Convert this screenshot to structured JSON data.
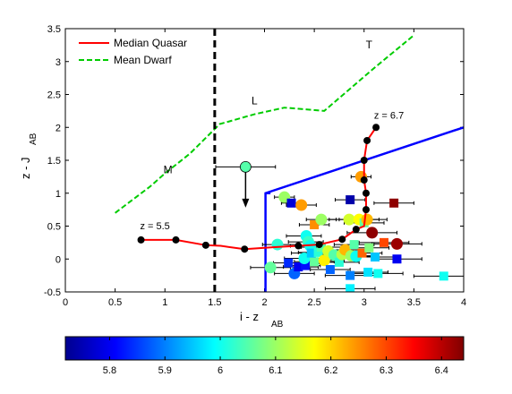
{
  "chart_data": {
    "type": "scatter",
    "xlabel": "i - z",
    "xlabel_sub": "AB",
    "ylabel": "z - J",
    "ylabel_sub": "AB",
    "xlim": [
      0,
      4
    ],
    "ylim": [
      -0.5,
      3.5
    ],
    "xticks": [
      0,
      0.5,
      1,
      1.5,
      2,
      2.5,
      3,
      3.5,
      4
    ],
    "xtick_labels": [
      "0",
      "0.5",
      "1",
      "1.5",
      "2",
      "2.5",
      "3",
      "3.5",
      "4"
    ],
    "yticks": [
      -0.5,
      0,
      0.5,
      1,
      1.5,
      2,
      2.5,
      3,
      3.5
    ],
    "ytick_labels": [
      "-0.5",
      "0",
      "0.5",
      "1",
      "1.5",
      "2",
      "2.5",
      "3",
      "3.5"
    ],
    "legend": {
      "placement": "top-left",
      "entries": [
        {
          "label": "Median Quasar",
          "color": "#ff0000",
          "style": "solid"
        },
        {
          "label": "Mean Dwarf",
          "color": "#00cc00",
          "style": "dashed"
        }
      ]
    },
    "quasar_track": {
      "x": [
        0.76,
        1.11,
        1.41,
        1.56,
        1.8,
        2.1,
        2.34,
        2.55,
        2.78,
        2.92,
        3.0,
        3.02,
        3.02,
        3.0,
        3.0,
        3.03,
        3.12
      ],
      "y": [
        0.29,
        0.29,
        0.21,
        0.2,
        0.15,
        0.18,
        0.2,
        0.22,
        0.3,
        0.45,
        0.5,
        0.75,
        1.0,
        1.2,
        1.5,
        1.8,
        2.0
      ]
    },
    "quasar_markers": {
      "x": [
        0.76,
        1.11,
        1.41,
        1.8,
        2.34,
        2.55,
        2.78,
        2.92,
        3.02,
        3.02,
        3.0,
        3.0,
        3.03,
        3.12
      ],
      "y": [
        0.29,
        0.29,
        0.21,
        0.15,
        0.2,
        0.22,
        0.3,
        0.45,
        0.75,
        1.0,
        1.2,
        1.5,
        1.8,
        2.0
      ]
    },
    "dwarf_track": {
      "x": [
        0.5,
        0.85,
        1.0,
        1.25,
        1.55,
        1.9,
        2.2,
        2.6,
        3.1,
        3.5
      ],
      "y": [
        0.7,
        1.1,
        1.3,
        1.6,
        2.05,
        2.2,
        2.3,
        2.25,
        2.9,
        3.4
      ]
    },
    "dwarf_labels": [
      {
        "text": "M",
        "x": 1.03,
        "y": 1.3
      },
      {
        "text": "L",
        "x": 1.9,
        "y": 2.35
      },
      {
        "text": "T",
        "x": 3.05,
        "y": 3.2
      }
    ],
    "track_annotations": [
      {
        "text": "z = 5.5",
        "x": 0.75,
        "y": 0.45
      },
      {
        "text": "z = 6.7",
        "x": 3.1,
        "y": 2.13
      }
    ],
    "cut_line": {
      "x": 1.5,
      "style": "dashed",
      "color": "#000000"
    },
    "selection_box": {
      "x": [
        2.01,
        2.01,
        4.0
      ],
      "y": [
        -0.5,
        1.0,
        2.0
      ],
      "tail_x": [
        2.01,
        2.06
      ],
      "tail_y": [
        1.0,
        1.0
      ],
      "color": "#0000ff"
    },
    "upper_limit": {
      "x": 1.81,
      "y": 1.4,
      "z": 6.05,
      "xerr": [
        0.3,
        0.3
      ],
      "arrow_to": 0.78
    },
    "points": [
      {
        "x": 2.06,
        "y": -0.13,
        "z": 6.06,
        "m": "c",
        "e": [
          0.2,
          0.2
        ]
      },
      {
        "x": 2.13,
        "y": 0.22,
        "z": 6.02,
        "m": "c",
        "e": [
          0.15,
          0.2
        ]
      },
      {
        "x": 2.2,
        "y": 0.94,
        "z": 6.1,
        "m": "c",
        "e": [
          0.1,
          0.1
        ]
      },
      {
        "x": 2.27,
        "y": 0.85,
        "z": 5.78,
        "m": "s",
        "e": [
          0.1,
          0.1
        ]
      },
      {
        "x": 2.37,
        "y": 0.82,
        "z": 6.24,
        "m": "c",
        "e": [
          0.15,
          0.15
        ]
      },
      {
        "x": 2.3,
        "y": -0.22,
        "z": 5.88,
        "m": "c",
        "e": [
          0.2,
          0.2
        ]
      },
      {
        "x": 2.34,
        "y": -0.12,
        "z": 5.8,
        "m": "s",
        "e": [
          0.15,
          0.2
        ]
      },
      {
        "x": 2.24,
        "y": -0.06,
        "z": 5.84,
        "m": "s",
        "e": [
          0.15,
          0.15
        ]
      },
      {
        "x": 2.41,
        "y": -0.1,
        "z": 5.82,
        "m": "s",
        "e": [
          0.15,
          0.15
        ]
      },
      {
        "x": 2.42,
        "y": 0.35,
        "z": 6.0,
        "m": "c",
        "e": [
          0.2,
          0.15
        ]
      },
      {
        "x": 2.44,
        "y": 0.26,
        "z": 6.03,
        "m": "c",
        "e": [
          0.2,
          0.15
        ]
      },
      {
        "x": 2.46,
        "y": 0.2,
        "z": 6.0,
        "m": "c",
        "e": [
          0.2,
          0.15
        ]
      },
      {
        "x": 2.5,
        "y": 0.52,
        "z": 6.25,
        "m": "s",
        "e": [
          0.15,
          0.15
        ]
      },
      {
        "x": 2.57,
        "y": 0.6,
        "z": 6.1,
        "m": "c",
        "e": [
          0.15,
          0.15
        ]
      },
      {
        "x": 2.4,
        "y": 0.01,
        "z": 6.0,
        "m": "c",
        "e": [
          0.2,
          0.2
        ]
      },
      {
        "x": 2.5,
        "y": -0.04,
        "z": 6.06,
        "m": "s",
        "e": [
          0.2,
          0.2
        ]
      },
      {
        "x": 2.47,
        "y": 0.09,
        "z": 5.95,
        "m": "s",
        "e": [
          0.2,
          0.2
        ]
      },
      {
        "x": 2.54,
        "y": 0.1,
        "z": 6.02,
        "m": "s",
        "e": [
          0.2,
          0.2
        ]
      },
      {
        "x": 2.57,
        "y": 0.18,
        "z": 6.05,
        "m": "s",
        "e": [
          0.2,
          0.2
        ]
      },
      {
        "x": 2.6,
        "y": -0.02,
        "z": 6.18,
        "m": "c",
        "e": [
          0.2,
          0.2
        ]
      },
      {
        "x": 2.64,
        "y": 0.12,
        "z": 6.14,
        "m": "c",
        "e": [
          0.2,
          0.2
        ]
      },
      {
        "x": 2.66,
        "y": -0.16,
        "z": 5.88,
        "m": "s",
        "e": [
          0.2,
          0.2
        ]
      },
      {
        "x": 2.7,
        "y": 0.06,
        "z": 6.05,
        "m": "c",
        "e": [
          0.2,
          0.2
        ]
      },
      {
        "x": 2.75,
        "y": -0.05,
        "z": 6.02,
        "m": "s",
        "e": [
          0.2,
          0.2
        ]
      },
      {
        "x": 2.78,
        "y": 0.07,
        "z": 6.12,
        "m": "c",
        "e": [
          0.2,
          0.2
        ]
      },
      {
        "x": 2.81,
        "y": 0.14,
        "z": 6.22,
        "m": "c",
        "e": [
          0.2,
          0.2
        ]
      },
      {
        "x": 2.85,
        "y": 0.6,
        "z": 6.14,
        "m": "c",
        "e": [
          0.2,
          0.2
        ]
      },
      {
        "x": 2.87,
        "y": 0.05,
        "z": 6.1,
        "m": "c",
        "e": [
          0.2,
          0.2
        ]
      },
      {
        "x": 2.86,
        "y": -0.25,
        "z": 5.9,
        "m": "s",
        "e": [
          0.25,
          0.25
        ]
      },
      {
        "x": 2.86,
        "y": -0.45,
        "z": 5.98,
        "m": "s",
        "e": [
          0.25,
          0.25
        ]
      },
      {
        "x": 2.86,
        "y": 0.9,
        "z": 5.75,
        "m": "s",
        "e": [
          0.15,
          0.15
        ]
      },
      {
        "x": 2.9,
        "y": 0.22,
        "z": 6.05,
        "m": "s",
        "e": [
          0.2,
          0.2
        ]
      },
      {
        "x": 2.92,
        "y": 0.04,
        "z": 6.0,
        "m": "c",
        "e": [
          0.2,
          0.2
        ]
      },
      {
        "x": 2.95,
        "y": 0.6,
        "z": 6.17,
        "m": "c",
        "e": [
          0.2,
          0.2
        ]
      },
      {
        "x": 2.97,
        "y": 1.25,
        "z": 6.24,
        "m": "c",
        "e": [
          0.1,
          0.1
        ]
      },
      {
        "x": 3.0,
        "y": 0.55,
        "z": 6.06,
        "m": "s",
        "e": [
          0.2,
          0.2
        ]
      },
      {
        "x": 3.03,
        "y": 0.6,
        "z": 6.22,
        "m": "c",
        "e": [
          0.2,
          0.2
        ]
      },
      {
        "x": 2.98,
        "y": 0.09,
        "z": 6.28,
        "m": "s",
        "e": [
          0.2,
          0.2
        ]
      },
      {
        "x": 3.05,
        "y": 0.17,
        "z": 6.08,
        "m": "s",
        "e": [
          0.2,
          0.2
        ]
      },
      {
        "x": 3.04,
        "y": -0.2,
        "z": 5.97,
        "m": "s",
        "e": [
          0.2,
          0.2
        ]
      },
      {
        "x": 3.08,
        "y": 0.4,
        "z": 6.43,
        "m": "c",
        "e": [
          0.25,
          0.25
        ]
      },
      {
        "x": 3.11,
        "y": 0.03,
        "z": 5.95,
        "m": "s",
        "e": [
          0.2,
          0.2
        ]
      },
      {
        "x": 3.14,
        "y": -0.22,
        "z": 6.0,
        "m": "s",
        "e": [
          0.25,
          0.25
        ]
      },
      {
        "x": 3.2,
        "y": 0.25,
        "z": 6.3,
        "m": "s",
        "e": [
          0.25,
          0.25
        ]
      },
      {
        "x": 3.3,
        "y": 0.85,
        "z": 6.43,
        "m": "s",
        "e": [
          0.2,
          0.2
        ]
      },
      {
        "x": 3.33,
        "y": 0.23,
        "z": 6.42,
        "m": "c",
        "e": [
          0.25,
          0.25
        ]
      },
      {
        "x": 3.33,
        "y": 0.0,
        "z": 5.8,
        "m": "s",
        "e": [
          0.25,
          0.25
        ]
      },
      {
        "x": 3.8,
        "y": -0.26,
        "z": 6.0,
        "m": "s",
        "e": [
          0.3,
          0.3
        ]
      }
    ],
    "colorbar": {
      "range": [
        5.72,
        6.44
      ],
      "ticks": [
        5.8,
        5.9,
        6.0,
        6.1,
        6.2,
        6.3,
        6.4
      ],
      "tick_labels": [
        "5.8",
        "5.9",
        "6",
        "6.1",
        "6.2",
        "6.3",
        "6.4"
      ],
      "colormap": "jet"
    }
  }
}
